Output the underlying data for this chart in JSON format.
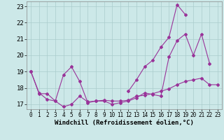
{
  "background_color": "#cce8e8",
  "grid_color": "#aacccc",
  "line_color": "#993399",
  "marker_color": "#993399",
  "xlabel": "Windchill (Refroidissement éolien,°C)",
  "xlim": [
    -0.5,
    23.5
  ],
  "ylim": [
    16.7,
    23.3
  ],
  "yticks": [
    17,
    18,
    19,
    20,
    21,
    22,
    23
  ],
  "xticks": [
    0,
    1,
    2,
    3,
    4,
    5,
    6,
    7,
    8,
    9,
    10,
    11,
    12,
    13,
    14,
    15,
    16,
    17,
    18,
    19,
    20,
    21,
    22,
    23
  ],
  "series1_x": [
    0,
    1,
    2,
    3,
    4,
    5,
    6,
    7,
    8,
    9,
    10,
    11,
    12,
    13,
    14,
    15,
    16,
    17,
    18,
    19,
    20,
    21,
    22,
    23
  ],
  "series1_y": [
    19.0,
    17.65,
    17.65,
    17.2,
    16.85,
    17.0,
    17.5,
    17.15,
    17.2,
    17.25,
    17.2,
    17.2,
    17.25,
    17.5,
    17.55,
    17.65,
    17.8,
    17.95,
    18.2,
    18.4,
    18.5,
    18.6,
    18.2,
    18.2
  ],
  "series2_x": [
    0,
    1,
    2,
    3,
    4,
    5,
    6,
    7,
    8,
    9,
    10,
    11,
    12,
    13,
    14,
    15,
    16,
    17,
    18,
    19,
    20,
    21,
    22
  ],
  "series2_y": [
    19.0,
    17.7,
    17.3,
    17.2,
    18.8,
    19.3,
    18.4,
    17.1,
    17.2,
    17.2,
    17.0,
    17.1,
    17.2,
    17.4,
    17.7,
    17.6,
    17.5,
    19.9,
    20.9,
    21.3,
    20.0,
    21.3,
    19.5
  ],
  "series3_x": [
    12,
    13,
    14,
    15,
    16,
    17,
    18,
    19
  ],
  "series3_y": [
    17.8,
    18.5,
    19.3,
    19.7,
    20.5,
    21.1,
    23.1,
    22.5
  ]
}
